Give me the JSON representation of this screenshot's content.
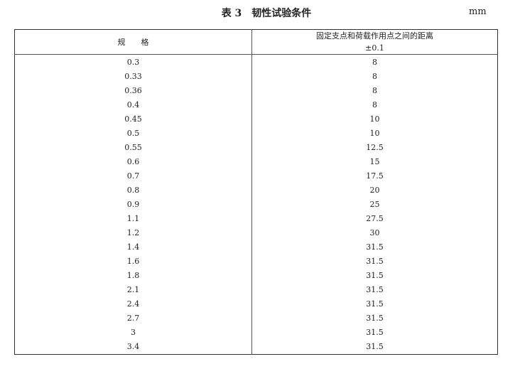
{
  "title": "表 3　韧性试验条件",
  "unit": "mm",
  "table": {
    "headers": [
      "规　　格",
      "固定支点和荷载作用点之间的距离",
      "±0.1"
    ],
    "rows": [
      [
        "0.3",
        "8"
      ],
      [
        "0.33",
        "8"
      ],
      [
        "0.36",
        "8"
      ],
      [
        "0.4",
        "8"
      ],
      [
        "0.45",
        "10"
      ],
      [
        "0.5",
        "10"
      ],
      [
        "0.55",
        "12.5"
      ],
      [
        "0.6",
        "15"
      ],
      [
        "0.7",
        "17.5"
      ],
      [
        "0.8",
        "20"
      ],
      [
        "0.9",
        "25"
      ],
      [
        "1.1",
        "27.5"
      ],
      [
        "1.2",
        "30"
      ],
      [
        "1.4",
        "31.5"
      ],
      [
        "1.6",
        "31.5"
      ],
      [
        "1.8",
        "31.5"
      ],
      [
        "2.1",
        "31.5"
      ],
      [
        "2.4",
        "31.5"
      ],
      [
        "2.7",
        "31.5"
      ],
      [
        "3",
        "31.5"
      ],
      [
        "3.4",
        "31.5"
      ]
    ]
  }
}
